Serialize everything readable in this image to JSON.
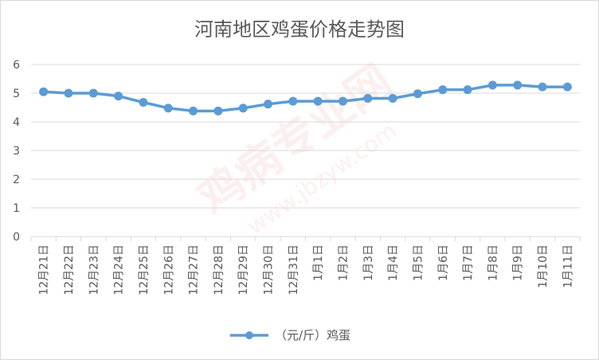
{
  "chart_data": {
    "type": "line",
    "title": "河南地区鸡蛋价格走势图",
    "categories": [
      "12月21日",
      "12月22日",
      "12月23日",
      "12月24日",
      "12月25日",
      "12月26日",
      "12月27日",
      "12月28日",
      "12月29日",
      "12月30日",
      "12月31日",
      "1月1日",
      "1月2日",
      "1月3日",
      "1月4日",
      "1月5日",
      "1月6日",
      "1月7日",
      "1月8日",
      "1月9日",
      "1月10日",
      "1月11日"
    ],
    "series": [
      {
        "name": "（元/斤）鸡蛋",
        "values": [
          5.05,
          5.0,
          5.0,
          4.9,
          4.68,
          4.48,
          4.38,
          4.38,
          4.48,
          4.62,
          4.72,
          4.72,
          4.72,
          4.82,
          4.82,
          4.98,
          5.12,
          5.12,
          5.28,
          5.28,
          5.22,
          5.22
        ]
      }
    ],
    "ylim": [
      0,
      6
    ],
    "yticks": [
      "0",
      "1",
      "2",
      "3",
      "4",
      "5",
      "6"
    ],
    "grid": true,
    "legend": "bottom",
    "color": "#5b9bd5"
  },
  "watermark": {
    "main": "鸡病专业网",
    "url": "www.jbzyw.com"
  }
}
